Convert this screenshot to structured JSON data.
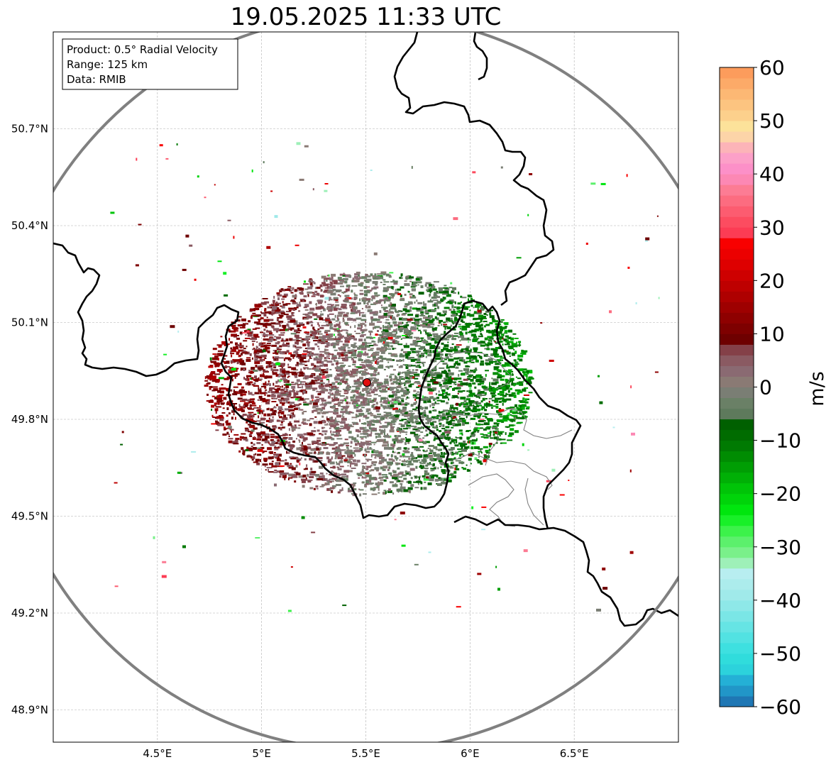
{
  "title": "19.05.2025 11:33 UTC",
  "info": {
    "product": "Product: 0.5° Radial Velocity",
    "range": "Range: 125 km",
    "source": "Data: RMIB"
  },
  "map": {
    "lon_range": [
      4.0,
      7.0
    ],
    "lat_range": [
      48.8,
      51.0
    ],
    "lon_ticks": [
      {
        "value": 4.5,
        "label": "4.5°E"
      },
      {
        "value": 5.0,
        "label": "5°E"
      },
      {
        "value": 5.5,
        "label": "5.5°E"
      },
      {
        "value": 6.0,
        "label": "6°E"
      },
      {
        "value": 6.5,
        "label": "6.5°E"
      }
    ],
    "lat_ticks": [
      {
        "value": 48.9,
        "label": "48.9°N"
      },
      {
        "value": 49.2,
        "label": "49.2°N"
      },
      {
        "value": 49.5,
        "label": "49.5°N"
      },
      {
        "value": 49.8,
        "label": "49.8°N"
      },
      {
        "value": 50.1,
        "label": "50.1°N"
      },
      {
        "value": 50.4,
        "label": "50.4°N"
      },
      {
        "value": 50.7,
        "label": "50.7°N"
      }
    ],
    "radar_site": {
      "lon": 5.505,
      "lat": 49.914
    },
    "range_km": 125,
    "colors": {
      "range_ring": "#808080",
      "border": "#000000",
      "admin": "#808080",
      "site": "#e01010",
      "grid": "#b0b0b0"
    }
  },
  "colorbar": {
    "label": "m/s",
    "min": -60,
    "max": 60,
    "ticks": [
      {
        "value": 60,
        "label": "60"
      },
      {
        "value": 50,
        "label": "50"
      },
      {
        "value": 40,
        "label": "40"
      },
      {
        "value": 30,
        "label": "30"
      },
      {
        "value": 20,
        "label": "20"
      },
      {
        "value": 10,
        "label": "10"
      },
      {
        "value": 0,
        "label": "0"
      },
      {
        "value": -10,
        "label": "−10"
      },
      {
        "value": -20,
        "label": "−20"
      },
      {
        "value": -30,
        "label": "−30"
      },
      {
        "value": -40,
        "label": "−40"
      },
      {
        "value": -50,
        "label": "−50"
      },
      {
        "value": -60,
        "label": "−60"
      }
    ],
    "stops": [
      {
        "from": -60,
        "to": -58,
        "color": "#1f77b4"
      },
      {
        "from": -58,
        "to": -56,
        "color": "#2196c8"
      },
      {
        "from": -56,
        "to": -54,
        "color": "#24b0d6"
      },
      {
        "from": -54,
        "to": -52,
        "color": "#2cd2dc"
      },
      {
        "from": -52,
        "to": -50,
        "color": "#30dcdc"
      },
      {
        "from": -50,
        "to": -48,
        "color": "#3ee0e0"
      },
      {
        "from": -48,
        "to": -46,
        "color": "#52e2e2"
      },
      {
        "from": -46,
        "to": -44,
        "color": "#66e4e4"
      },
      {
        "from": -44,
        "to": -42,
        "color": "#7ae6e6"
      },
      {
        "from": -42,
        "to": -40,
        "color": "#8ee8e8"
      },
      {
        "from": -40,
        "to": -38,
        "color": "#a0eaea"
      },
      {
        "from": -38,
        "to": -36,
        "color": "#acecec"
      },
      {
        "from": -36,
        "to": -34,
        "color": "#b8eef0"
      },
      {
        "from": -34,
        "to": -32,
        "color": "#9ef0b8"
      },
      {
        "from": -32,
        "to": -30,
        "color": "#7af08a"
      },
      {
        "from": -30,
        "to": -28,
        "color": "#5cf06c"
      },
      {
        "from": -28,
        "to": -26,
        "color": "#3cf24a"
      },
      {
        "from": -26,
        "to": -24,
        "color": "#18f028"
      },
      {
        "from": -24,
        "to": -22,
        "color": "#00e60e"
      },
      {
        "from": -22,
        "to": -20,
        "color": "#00d40a"
      },
      {
        "from": -20,
        "to": -18,
        "color": "#00c408"
      },
      {
        "from": -18,
        "to": -16,
        "color": "#00b006"
      },
      {
        "from": -16,
        "to": -14,
        "color": "#009e04"
      },
      {
        "from": -14,
        "to": -12,
        "color": "#008c02"
      },
      {
        "from": -12,
        "to": -10,
        "color": "#007a02"
      },
      {
        "from": -10,
        "to": -8,
        "color": "#006c00"
      },
      {
        "from": -8,
        "to": -6,
        "color": "#006000"
      },
      {
        "from": -6,
        "to": -4,
        "color": "#5e7a5c"
      },
      {
        "from": -4,
        "to": -2,
        "color": "#6a8066"
      },
      {
        "from": -2,
        "to": 0,
        "color": "#7a7e74"
      },
      {
        "from": 0,
        "to": 2,
        "color": "#8a7a74"
      },
      {
        "from": 2,
        "to": 4,
        "color": "#8a6a72"
      },
      {
        "from": 4,
        "to": 6,
        "color": "#8a5a62"
      },
      {
        "from": 6,
        "to": 8,
        "color": "#844048"
      },
      {
        "from": 8,
        "to": 10,
        "color": "#6e0000"
      },
      {
        "from": 10,
        "to": 12,
        "color": "#7e0000"
      },
      {
        "from": 12,
        "to": 14,
        "color": "#8e0000"
      },
      {
        "from": 14,
        "to": 16,
        "color": "#9e0000"
      },
      {
        "from": 16,
        "to": 18,
        "color": "#ae0000"
      },
      {
        "from": 18,
        "to": 20,
        "color": "#be0000"
      },
      {
        "from": 20,
        "to": 22,
        "color": "#ce0000"
      },
      {
        "from": 22,
        "to": 24,
        "color": "#de0000"
      },
      {
        "from": 24,
        "to": 26,
        "color": "#ec0000"
      },
      {
        "from": 26,
        "to": 28,
        "color": "#f80000"
      },
      {
        "from": 28,
        "to": 30,
        "color": "#fc3c54"
      },
      {
        "from": 30,
        "to": 32,
        "color": "#fc4c60"
      },
      {
        "from": 32,
        "to": 34,
        "color": "#fc5c70"
      },
      {
        "from": 34,
        "to": 36,
        "color": "#fc6c80"
      },
      {
        "from": 36,
        "to": 38,
        "color": "#fc7c94"
      },
      {
        "from": 38,
        "to": 40,
        "color": "#fc88b4"
      },
      {
        "from": 40,
        "to": 42,
        "color": "#fc90c8"
      },
      {
        "from": 42,
        "to": 44,
        "color": "#fca0c8"
      },
      {
        "from": 44,
        "to": 46,
        "color": "#fcb4b8"
      },
      {
        "from": 46,
        "to": 48,
        "color": "#fcd4a8"
      },
      {
        "from": 48,
        "to": 50,
        "color": "#fce29a"
      },
      {
        "from": 50,
        "to": 52,
        "color": "#fcd08c"
      },
      {
        "from": 52,
        "to": 54,
        "color": "#fcc480"
      },
      {
        "from": 54,
        "to": 56,
        "color": "#fcb874"
      },
      {
        "from": 56,
        "to": 58,
        "color": "#fcaa68"
      },
      {
        "from": 58,
        "to": 60,
        "color": "#fc9c5c"
      }
    ]
  }
}
